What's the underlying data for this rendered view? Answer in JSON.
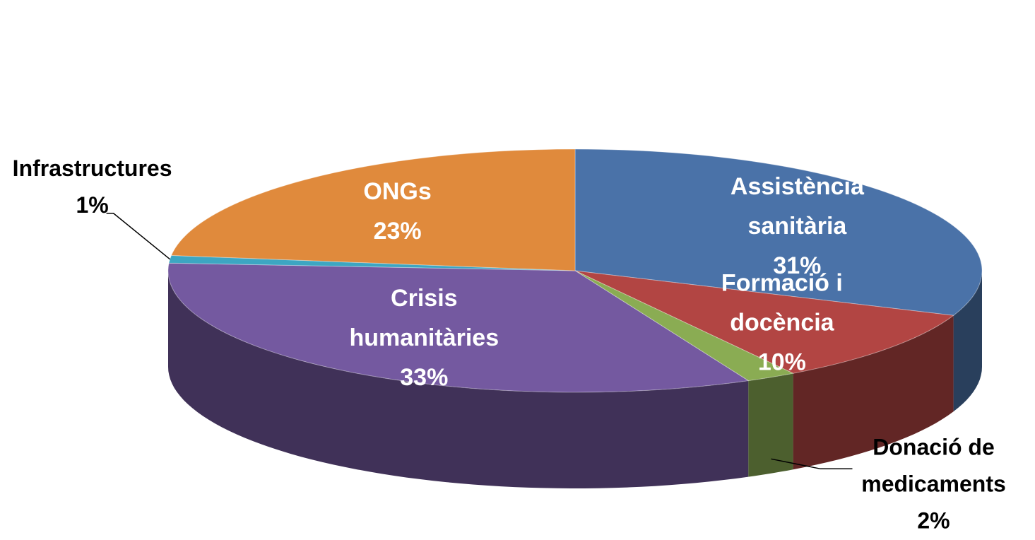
{
  "chart_data": {
    "type": "pie",
    "style": "3d",
    "title": "",
    "slices": [
      {
        "name": "Assistència sanitària",
        "lines": [
          "Assistència",
          "sanitària"
        ],
        "pct_label": "31%",
        "value": 31,
        "color": "#4a72a8",
        "label_inside": true
      },
      {
        "name": "Formació i docència",
        "lines": [
          "Formació i",
          "docència"
        ],
        "pct_label": "10%",
        "value": 10,
        "color": "#b24543",
        "label_inside": true
      },
      {
        "name": "Donació de medicaments",
        "lines": [
          "Donació de",
          "medicaments"
        ],
        "pct_label": "2%",
        "value": 2,
        "color": "#8aac53",
        "label_inside": false
      },
      {
        "name": "Crisis humanitàries",
        "lines": [
          "Crisis",
          "humanitàries"
        ],
        "pct_label": "33%",
        "value": 33,
        "color": "#7459a0",
        "label_inside": true
      },
      {
        "name": "Infrastructures",
        "lines": [
          "Infrastructures"
        ],
        "pct_label": "1%",
        "value": 1,
        "color": "#3da6c2",
        "label_inside": false
      },
      {
        "name": "ONGs",
        "lines": [
          "ONGs"
        ],
        "pct_label": "23%",
        "value": 23,
        "color": "#e08a3c",
        "label_inside": true
      }
    ]
  }
}
